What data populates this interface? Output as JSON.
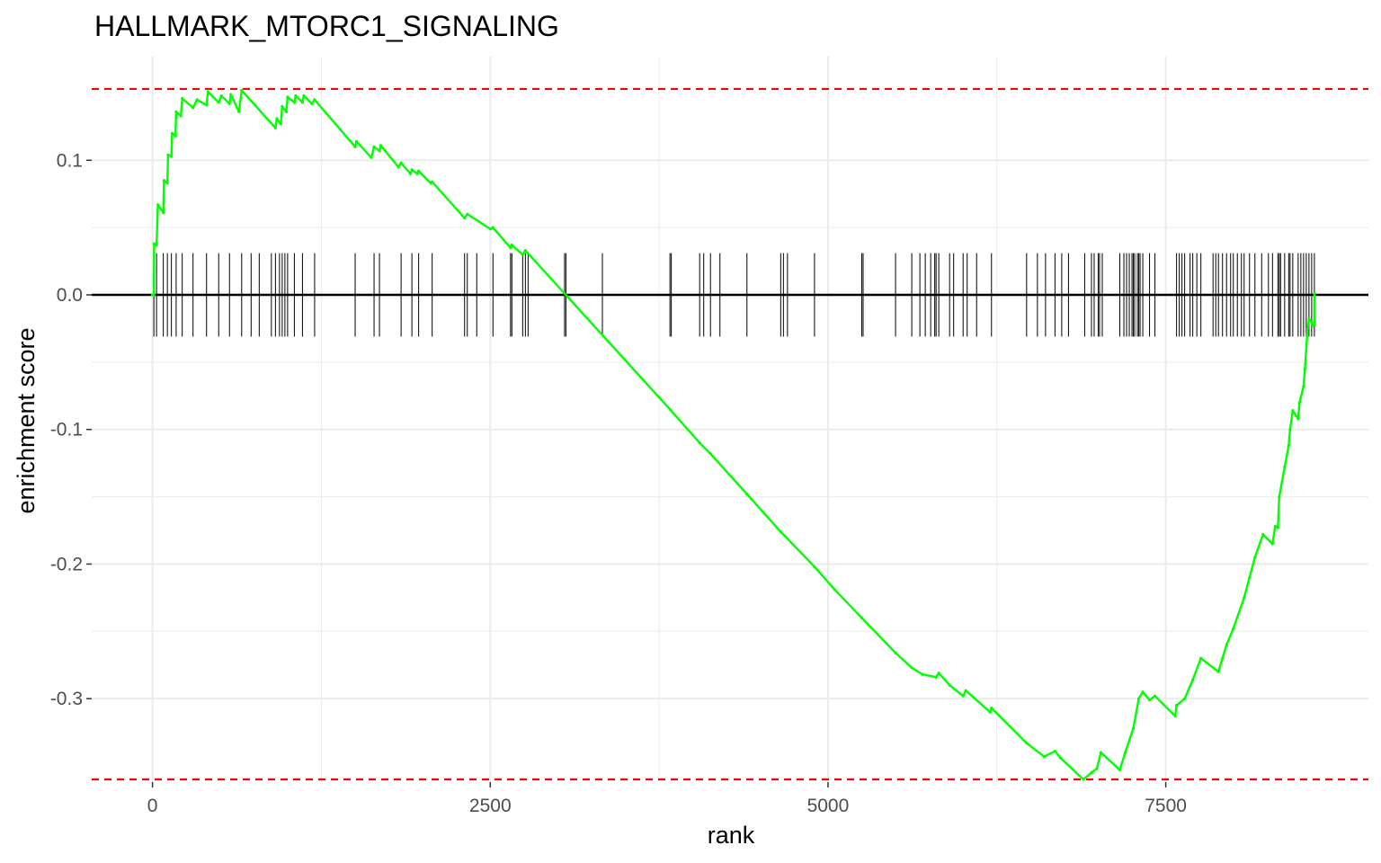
{
  "chart_data": {
    "type": "line",
    "title": "HALLMARK_MTORC1_SIGNALING",
    "xlabel": "rank",
    "ylabel": "enrichment score",
    "xlim": [
      -450,
      9000
    ],
    "ylim": [
      -0.362,
      0.177
    ],
    "x_ticks": [
      0,
      2500,
      5000,
      7500
    ],
    "x_tick_labels": [
      "0",
      "2500",
      "5000",
      "7500"
    ],
    "y_ticks": [
      0.1,
      0.0,
      -0.1,
      -0.2,
      -0.3
    ],
    "y_tick_labels": [
      "0.1",
      "0.0",
      "-0.1",
      "-0.2",
      "-0.3"
    ],
    "grid": true,
    "colors": {
      "curve": "#00ff00",
      "threshold": "#ff0000",
      "zero_line": "#000000",
      "ticks": "#000000",
      "grid": "#ebebeb"
    },
    "thresholds": [
      0.153,
      -0.36
    ],
    "series": [
      {
        "points": [
          [
            0,
            0.0
          ],
          [
            10,
            0.0
          ],
          [
            12,
            0.038
          ],
          [
            30,
            0.037
          ],
          [
            40,
            0.067
          ],
          [
            80,
            0.061
          ],
          [
            85,
            0.085
          ],
          [
            110,
            0.083
          ],
          [
            115,
            0.104
          ],
          [
            140,
            0.103
          ],
          [
            145,
            0.12
          ],
          [
            170,
            0.118
          ],
          [
            175,
            0.136
          ],
          [
            210,
            0.133
          ],
          [
            220,
            0.146
          ],
          [
            300,
            0.139
          ],
          [
            330,
            0.145
          ],
          [
            400,
            0.141
          ],
          [
            410,
            0.151
          ],
          [
            490,
            0.143
          ],
          [
            510,
            0.148
          ],
          [
            570,
            0.142
          ],
          [
            580,
            0.149
          ],
          [
            640,
            0.136
          ],
          [
            660,
            0.152
          ],
          [
            910,
            0.124
          ],
          [
            920,
            0.131
          ],
          [
            950,
            0.127
          ],
          [
            960,
            0.14
          ],
          [
            990,
            0.136
          ],
          [
            1000,
            0.147
          ],
          [
            1050,
            0.143
          ],
          [
            1060,
            0.148
          ],
          [
            1110,
            0.143
          ],
          [
            1120,
            0.148
          ],
          [
            1180,
            0.142
          ],
          [
            1200,
            0.145
          ],
          [
            1500,
            0.11
          ],
          [
            1510,
            0.114
          ],
          [
            1620,
            0.102
          ],
          [
            1640,
            0.11
          ],
          [
            1680,
            0.107
          ],
          [
            1690,
            0.111
          ],
          [
            1820,
            0.095
          ],
          [
            1840,
            0.098
          ],
          [
            1910,
            0.09
          ],
          [
            1920,
            0.093
          ],
          [
            1960,
            0.09
          ],
          [
            1970,
            0.092
          ],
          [
            2060,
            0.083
          ],
          [
            2070,
            0.084
          ],
          [
            2310,
            0.057
          ],
          [
            2330,
            0.06
          ],
          [
            2500,
            0.049
          ],
          [
            2520,
            0.05
          ],
          [
            2650,
            0.035
          ],
          [
            2660,
            0.037
          ],
          [
            2740,
            0.03
          ],
          [
            2760,
            0.033
          ],
          [
            3830,
            -0.085
          ],
          [
            4050,
            -0.11
          ],
          [
            4130,
            -0.118
          ],
          [
            4400,
            -0.148
          ],
          [
            4650,
            -0.176
          ],
          [
            4900,
            -0.202
          ],
          [
            5050,
            -0.219
          ],
          [
            5250,
            -0.24
          ],
          [
            5500,
            -0.266
          ],
          [
            5620,
            -0.277
          ],
          [
            5700,
            -0.282
          ],
          [
            5800,
            -0.284
          ],
          [
            5820,
            -0.281
          ],
          [
            5900,
            -0.29
          ],
          [
            6000,
            -0.298
          ],
          [
            6020,
            -0.294
          ],
          [
            6200,
            -0.31
          ],
          [
            6210,
            -0.307
          ],
          [
            6470,
            -0.333
          ],
          [
            6600,
            -0.343
          ],
          [
            6680,
            -0.339
          ],
          [
            6720,
            -0.344
          ],
          [
            6890,
            -0.36
          ],
          [
            6950,
            -0.355
          ],
          [
            6990,
            -0.352
          ],
          [
            7020,
            -0.34
          ],
          [
            7160,
            -0.353
          ],
          [
            7200,
            -0.34
          ],
          [
            7260,
            -0.322
          ],
          [
            7300,
            -0.3
          ],
          [
            7330,
            -0.295
          ],
          [
            7380,
            -0.301
          ],
          [
            7420,
            -0.298
          ],
          [
            7570,
            -0.313
          ],
          [
            7580,
            -0.305
          ],
          [
            7640,
            -0.3
          ],
          [
            7700,
            -0.286
          ],
          [
            7760,
            -0.27
          ],
          [
            7890,
            -0.28
          ],
          [
            7920,
            -0.27
          ],
          [
            7950,
            -0.26
          ],
          [
            8000,
            -0.248
          ],
          [
            8080,
            -0.225
          ],
          [
            8120,
            -0.21
          ],
          [
            8160,
            -0.195
          ],
          [
            8220,
            -0.178
          ],
          [
            8290,
            -0.185
          ],
          [
            8310,
            -0.172
          ],
          [
            8330,
            -0.173
          ],
          [
            8340,
            -0.15
          ],
          [
            8380,
            -0.128
          ],
          [
            8410,
            -0.112
          ],
          [
            8420,
            -0.1
          ],
          [
            8440,
            -0.086
          ],
          [
            8480,
            -0.092
          ],
          [
            8490,
            -0.08
          ],
          [
            8520,
            -0.068
          ],
          [
            8530,
            -0.055
          ],
          [
            8550,
            -0.025
          ],
          [
            8560,
            -0.018
          ],
          [
            8580,
            -0.02
          ],
          [
            8590,
            -0.023
          ],
          [
            8600,
            -0.022
          ],
          [
            8600,
            0.001
          ]
        ]
      }
    ],
    "gene_hits": [
      10,
      30,
      80,
      110,
      140,
      175,
      220,
      300,
      400,
      490,
      570,
      660,
      730,
      790,
      880,
      910,
      940,
      960,
      980,
      1000,
      1050,
      1110,
      1200,
      1500,
      1640,
      1680,
      1840,
      1920,
      1970,
      2070,
      2310,
      2330,
      2400,
      2520,
      2650,
      2660,
      2740,
      2760,
      2780,
      3050,
      3060,
      3330,
      3830,
      3840,
      4050,
      4080,
      4130,
      4200,
      4400,
      4650,
      4670,
      4700,
      4900,
      5250,
      5260,
      5500,
      5620,
      5680,
      5720,
      5760,
      5790,
      5800,
      5820,
      5900,
      5930,
      6000,
      6030,
      6100,
      6210,
      6470,
      6550,
      6610,
      6680,
      6730,
      6780,
      6900,
      6950,
      6970,
      7000,
      7010,
      7030,
      7160,
      7190,
      7210,
      7230,
      7250,
      7260,
      7270,
      7290,
      7300,
      7310,
      7330,
      7380,
      7420,
      7580,
      7600,
      7620,
      7640,
      7680,
      7700,
      7730,
      7760,
      7850,
      7870,
      7890,
      7920,
      7950,
      7980,
      8000,
      8030,
      8060,
      8080,
      8120,
      8160,
      8210,
      8260,
      8290,
      8330,
      8340,
      8350,
      8380,
      8410,
      8420,
      8440,
      8480,
      8500,
      8520,
      8540,
      8560,
      8580,
      8600
    ],
    "hit_range": [
      -0.031,
      0.031
    ]
  }
}
